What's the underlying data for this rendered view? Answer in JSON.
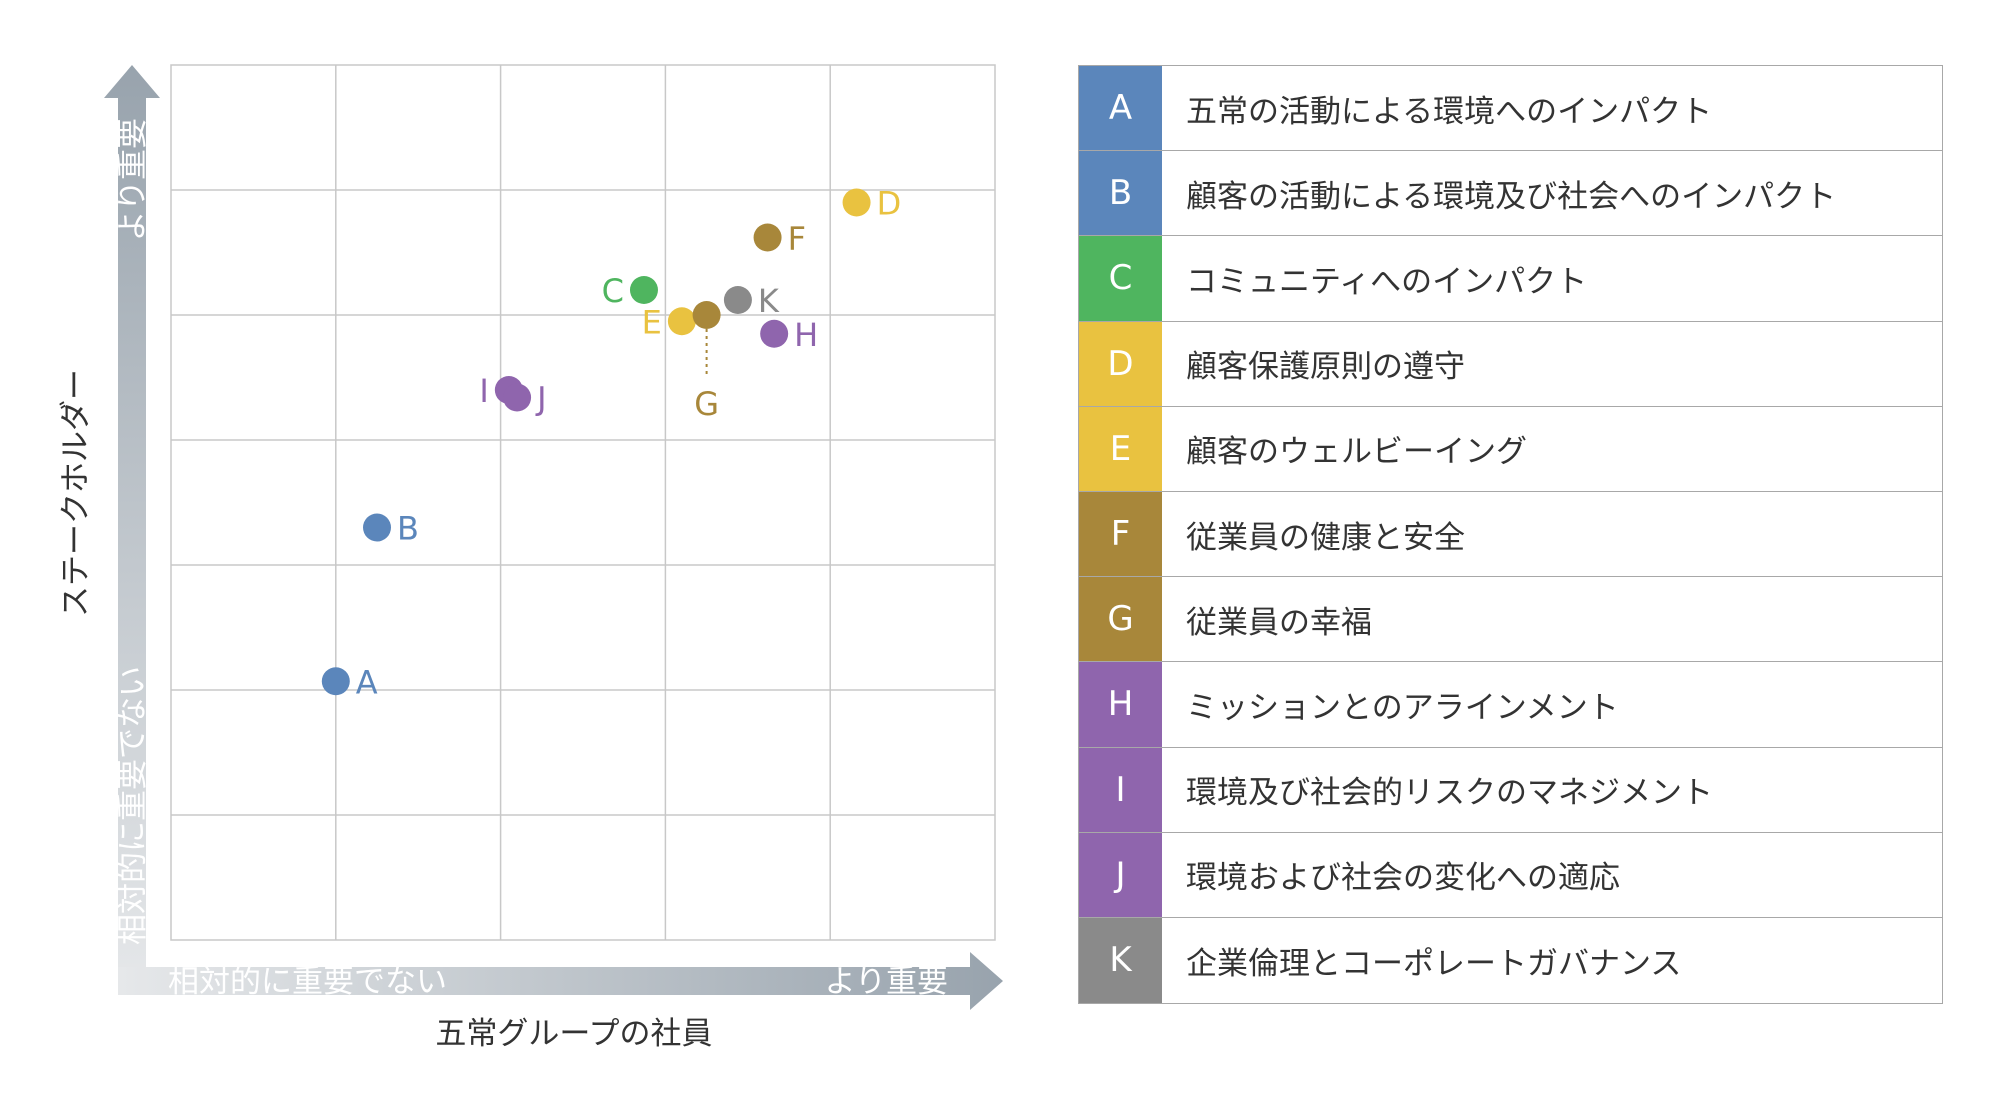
{
  "chart_data": {
    "type": "scatter",
    "xlabel": "五常グループの社員",
    "ylabel": "ステークホルダー",
    "x_axis_low": "相対的に重要でない",
    "x_axis_high": "より重要",
    "y_axis_low": "相対的に重要でない",
    "y_axis_high": "より重要",
    "xlim": [
      0,
      5
    ],
    "ylim": [
      0,
      7
    ],
    "grid": true,
    "colors": {
      "blue": "#5b86bb",
      "green": "#4fb55f",
      "yellow": "#e9c240",
      "olive": "#a8873a",
      "purple": "#8f65ad",
      "gray": "#8a8a8a",
      "gridline": "#c8c8c8",
      "axis_arrow": "#a4adb5"
    },
    "points": [
      {
        "label": "A",
        "x": 1.0,
        "y": 2.07,
        "color": "#5b86bb",
        "text_color": "#5b86bb",
        "label_side": "right"
      },
      {
        "label": "B",
        "x": 1.25,
        "y": 3.3,
        "color": "#5b86bb",
        "text_color": "#5b86bb",
        "label_side": "right"
      },
      {
        "label": "C",
        "x": 2.87,
        "y": 5.2,
        "color": "#4fb55f",
        "text_color": "#4fb55f",
        "label_side": "left"
      },
      {
        "label": "D",
        "x": 4.16,
        "y": 5.9,
        "color": "#e9c240",
        "text_color": "#e9c240",
        "label_side": "right"
      },
      {
        "label": "E",
        "x": 3.1,
        "y": 4.95,
        "color": "#e9c240",
        "text_color": "#e9c240",
        "label_side": "left"
      },
      {
        "label": "F",
        "x": 3.62,
        "y": 5.62,
        "color": "#a8873a",
        "text_color": "#a8873a",
        "label_side": "right"
      },
      {
        "label": "G",
        "x": 3.25,
        "y": 5.0,
        "color": "#a8873a",
        "text_color": "#a8873a",
        "label_side": "below"
      },
      {
        "label": "H",
        "x": 3.66,
        "y": 4.85,
        "color": "#8f65ad",
        "text_color": "#8f65ad",
        "label_side": "right"
      },
      {
        "label": "I",
        "x": 2.05,
        "y": 4.4,
        "color": "#8f65ad",
        "text_color": "#8f65ad",
        "label_side": "left"
      },
      {
        "label": "J",
        "x": 2.1,
        "y": 4.34,
        "color": "#8f65ad",
        "text_color": "#8f65ad",
        "label_side": "right"
      },
      {
        "label": "K",
        "x": 3.44,
        "y": 5.12,
        "color": "#8a8a8a",
        "text_color": "#8a8a8a",
        "label_side": "right"
      }
    ]
  },
  "legend": [
    {
      "code": "A",
      "label": "五常の活動による環境へのインパクト",
      "color": "#5b86bb"
    },
    {
      "code": "B",
      "label": "顧客の活動による環境及び社会へのインパクト",
      "color": "#5b86bb"
    },
    {
      "code": "C",
      "label": "コミュニティへのインパクト",
      "color": "#4fb55f"
    },
    {
      "code": "D",
      "label": "顧客保護原則の遵守",
      "color": "#e9c240"
    },
    {
      "code": "E",
      "label": "顧客のウェルビーイング",
      "color": "#e9c240"
    },
    {
      "code": "F",
      "label": "従業員の健康と安全",
      "color": "#a8873a"
    },
    {
      "code": "G",
      "label": "従業員の幸福",
      "color": "#a8873a"
    },
    {
      "code": "H",
      "label": "ミッションとのアラインメント",
      "color": "#8f65ad"
    },
    {
      "code": "I",
      "label": "環境及び社会的リスクのマネジメント",
      "color": "#8f65ad"
    },
    {
      "code": "J",
      "label": "環境および社会の変化への適応",
      "color": "#8f65ad"
    },
    {
      "code": "K",
      "label": "企業倫理とコーポレートガバナンス",
      "color": "#8a8a8a"
    }
  ]
}
